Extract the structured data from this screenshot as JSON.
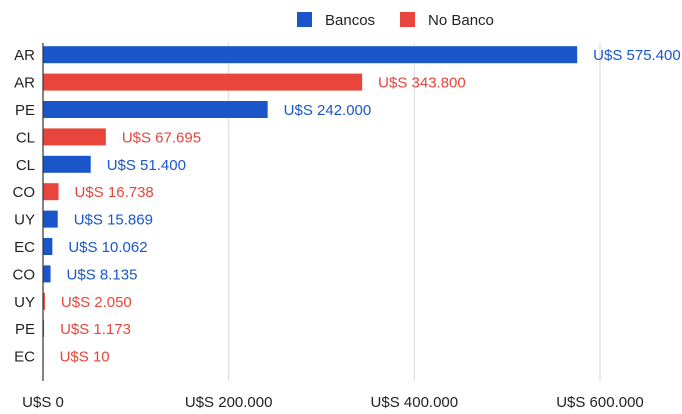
{
  "chart_data": {
    "type": "bar",
    "orientation": "horizontal",
    "legend_position": "top",
    "grid": true,
    "xlim": [
      0,
      600000
    ],
    "x_ticks": [
      {
        "value": 0,
        "label": "U$S 0"
      },
      {
        "value": 200000,
        "label": "U$S 200.000"
      },
      {
        "value": 400000,
        "label": "U$S 400.000"
      },
      {
        "value": 600000,
        "label": "U$S 600.000"
      }
    ],
    "series": [
      {
        "name": "Bancos",
        "color": "#1a56c9"
      },
      {
        "name": "No Banco",
        "color": "#e8453c"
      }
    ],
    "bars": [
      {
        "category": "AR",
        "series": "Bancos",
        "value": 575400,
        "label": "U$S 575.400"
      },
      {
        "category": "AR",
        "series": "No Banco",
        "value": 343800,
        "label": "U$S 343.800"
      },
      {
        "category": "PE",
        "series": "Bancos",
        "value": 242000,
        "label": "U$S 242.000"
      },
      {
        "category": "CL",
        "series": "No Banco",
        "value": 67695,
        "label": "U$S 67.695"
      },
      {
        "category": "CL",
        "series": "Bancos",
        "value": 51400,
        "label": "U$S 51.400"
      },
      {
        "category": "CO",
        "series": "No Banco",
        "value": 16738,
        "label": "U$S 16.738"
      },
      {
        "category": "UY",
        "series": "Bancos",
        "value": 15869,
        "label": "U$S 15.869"
      },
      {
        "category": "EC",
        "series": "Bancos",
        "value": 10062,
        "label": "U$S 10.062"
      },
      {
        "category": "CO",
        "series": "Bancos",
        "value": 8135,
        "label": "U$S 8.135"
      },
      {
        "category": "UY",
        "series": "No Banco",
        "value": 2050,
        "label": "U$S 2.050"
      },
      {
        "category": "PE",
        "series": "No Banco",
        "value": 1173,
        "label": "U$S 1.173"
      },
      {
        "category": "EC",
        "series": "No Banco",
        "value": 10,
        "label": "U$S 10"
      }
    ]
  }
}
